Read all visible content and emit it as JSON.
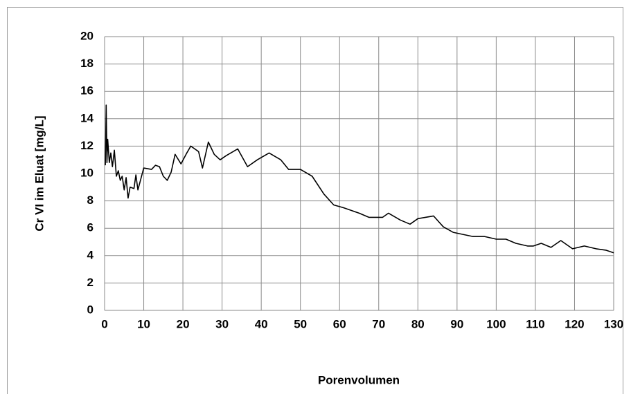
{
  "chart_data": {
    "type": "line",
    "x_label": "Porenvolumen",
    "y_label": "Cr VI im Eluat [mg/L]",
    "x": [
      0.2,
      0.4,
      0.6,
      0.8,
      1.2,
      1.6,
      2.0,
      2.5,
      3.0,
      3.5,
      4.0,
      4.5,
      5.0,
      5.5,
      6.0,
      6.5,
      7.5,
      8.0,
      8.5,
      10,
      12,
      13,
      14,
      15,
      16,
      17,
      18,
      19.5,
      21,
      22,
      24,
      25,
      26.5,
      28,
      29.5,
      31,
      34,
      36.5,
      39,
      42,
      45,
      47,
      50,
      53,
      56,
      58.5,
      61,
      65,
      67.5,
      71,
      72.5,
      75.5,
      78,
      80,
      84,
      86.5,
      89,
      94,
      97,
      100,
      102.5,
      105,
      108,
      109.5,
      111.5,
      114,
      116.5,
      119.5,
      122.5,
      125.5,
      128,
      130
    ],
    "values": [
      10.6,
      15.0,
      10.8,
      12.5,
      10.8,
      11.5,
      10.5,
      11.7,
      9.8,
      10.2,
      9.5,
      9.8,
      8.8,
      9.7,
      8.2,
      9.0,
      8.9,
      9.9,
      8.8,
      10.4,
      10.3,
      10.6,
      10.5,
      9.8,
      9.5,
      10.1,
      11.4,
      10.7,
      11.5,
      12.0,
      11.6,
      10.4,
      12.3,
      11.4,
      11.0,
      11.3,
      11.8,
      10.5,
      11.0,
      11.5,
      11.0,
      10.3,
      10.3,
      9.8,
      8.5,
      7.7,
      7.5,
      7.1,
      6.8,
      6.8,
      7.1,
      6.6,
      6.3,
      6.7,
      6.9,
      6.1,
      5.7,
      5.4,
      5.4,
      5.2,
      5.2,
      4.9,
      4.7,
      4.7,
      4.9,
      4.6,
      5.1,
      4.5,
      4.7,
      4.5,
      4.4,
      4.2
    ],
    "color": "#000000",
    "xlim": [
      0,
      130
    ],
    "xticks": [
      0,
      10,
      20,
      30,
      40,
      50,
      60,
      70,
      80,
      90,
      100,
      110,
      120,
      130
    ],
    "ylim": [
      0,
      20
    ],
    "yticks": [
      0,
      2,
      4,
      6,
      8,
      10,
      12,
      14,
      16,
      18,
      20
    ],
    "grid": true
  }
}
